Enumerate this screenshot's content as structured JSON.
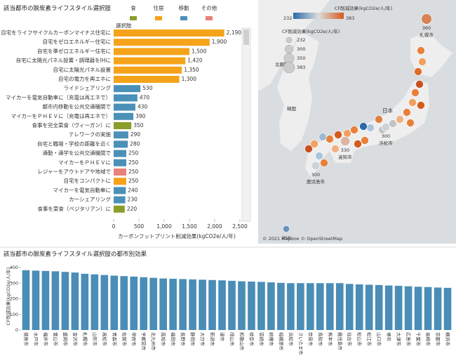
{
  "chart_data": [
    {
      "type": "bar",
      "orientation": "horizontal",
      "title": "該当都市の脱炭素ライフスタイル選択肢",
      "legend": [
        {
          "name": "食",
          "color": "#8c9d2b"
        },
        {
          "name": "住居",
          "color": "#f5a31a"
        },
        {
          "name": "移動",
          "color": "#4a90b7"
        },
        {
          "name": "その他",
          "color": "#e8817a"
        }
      ],
      "category_header": "選択肢",
      "categories": [
        "自宅をライフサイクルカーボンマイナス住宅に",
        "自宅をゼロエネルギー住宅に",
        "自宅を準ゼロエネルギー住宅に",
        "自宅に太陽光パネル設置・調理器をIHに",
        "自宅に太陽光パネル設置",
        "自宅の電力を再エネに",
        "ライドシェアリング",
        "マイカーを電気自動車に（充電は再エネで）",
        "都市内移動を公共交通機関で",
        "マイカーをＰＨＥＶに（充電は再エネで）",
        "食事を完全菜食（ヴィーガン）に",
        "テレワークの実施",
        "自宅と職場・学校の距離を近く",
        "通勤・通学を公共交通機関で",
        "マイカーをＰＨＥＶに",
        "レジャーをアウトドアや地域で",
        "自宅をコンパクトに",
        "マイカーを電気自動車に",
        "カーシェアリング",
        "食事を菜食（ベジタリアン）に"
      ],
      "values": [
        2190,
        1900,
        1500,
        1420,
        1350,
        1300,
        530,
        470,
        430,
        390,
        350,
        290,
        280,
        250,
        250,
        250,
        250,
        240,
        230,
        220
      ],
      "value_labels": [
        "2,190",
        "1,900",
        "1,500",
        "1,420",
        "1,350",
        "1,300",
        "530",
        "470",
        "430",
        "390",
        "350",
        "290",
        "280",
        "250",
        "250",
        "250",
        "250",
        "240",
        "230",
        "220"
      ],
      "groups": [
        1,
        1,
        1,
        1,
        1,
        1,
        2,
        2,
        2,
        2,
        0,
        2,
        2,
        2,
        2,
        3,
        1,
        2,
        2,
        0
      ],
      "xlabel": "カーボンフットプリント削減効果(kgCO2e/人/年)",
      "xlim": [
        0,
        2500
      ],
      "xticks": [
        0,
        500,
        {
          "value": 1000,
          "label": "1,000"
        },
        {
          "value": 1500,
          "label": "1,500"
        },
        {
          "value": 2000,
          "label": "2,000"
        },
        {
          "value": 2500,
          "label": "2,500"
        }
      ]
    },
    {
      "type": "bar",
      "title": "該当都市の脱炭素ライフスタイル選択肢の都市別効果",
      "ylabel": "CF削減効果(kgCO2e/人/年)",
      "categories": [
        "徳島市",
        "水戸市",
        "福井市",
        "富山市",
        "盛岡市",
        "金沢市",
        "札幌市",
        "山形市",
        "高松市",
        "青森市",
        "佐賀市",
        "甲府市",
        "宇都宮市",
        "北九州市",
        "高知市",
        "福岡市",
        "長野市",
        "静岡市",
        "大分市",
        "新潟市",
        "津市",
        "岡山市",
        "和歌山市",
        "岐阜市",
        "宮崎市",
        "前橋市",
        "相模原市",
        "浜松市",
        "さいたま市",
        "奈良市",
        "鳥取市",
        "熊本市",
        "鹿児島市",
        "仙台市",
        "松山市",
        "松江市",
        "山口市",
        "堺市",
        "大津市",
        "広島市",
        "千葉市",
        "長崎市",
        "京都市",
        "横浜市"
      ],
      "values": [
        383,
        380,
        378,
        376,
        372,
        368,
        360,
        356,
        352,
        348,
        345,
        342,
        338,
        334,
        330,
        328,
        326,
        324,
        322,
        320,
        318,
        315,
        312,
        310,
        308,
        305,
        302,
        300,
        300,
        300,
        300,
        300,
        300,
        295,
        292,
        290,
        288,
        285,
        283,
        280,
        277,
        275,
        272,
        270
      ],
      "color": "#4a8db7",
      "ylim": [
        0,
        400
      ],
      "yticks": [
        0,
        100,
        200,
        300,
        400
      ]
    }
  ],
  "map": {
    "color_legend": {
      "title": "CF削減効果(kgCO2e/人/年)",
      "min": 232,
      "max": 383,
      "colors": [
        "#2c6aa8",
        "#d55a1c"
      ]
    },
    "size_legend": {
      "title": "CF削減効果(kgCO2e/人/年)",
      "values": [
        232,
        300,
        350,
        383
      ]
    },
    "points": [
      {
        "name": "札幌市",
        "value": 360
      },
      {
        "name": "浜松市",
        "value": 300
      },
      {
        "name": "高知市",
        "value": 330
      },
      {
        "name": "鹿児島市",
        "value": 300
      },
      {
        "value": 258
      }
    ],
    "place_labels": [
      "北朝鮮",
      "韓国",
      "日本"
    ],
    "credit": "© 2021 Mapbox © OpenStreetMap"
  }
}
